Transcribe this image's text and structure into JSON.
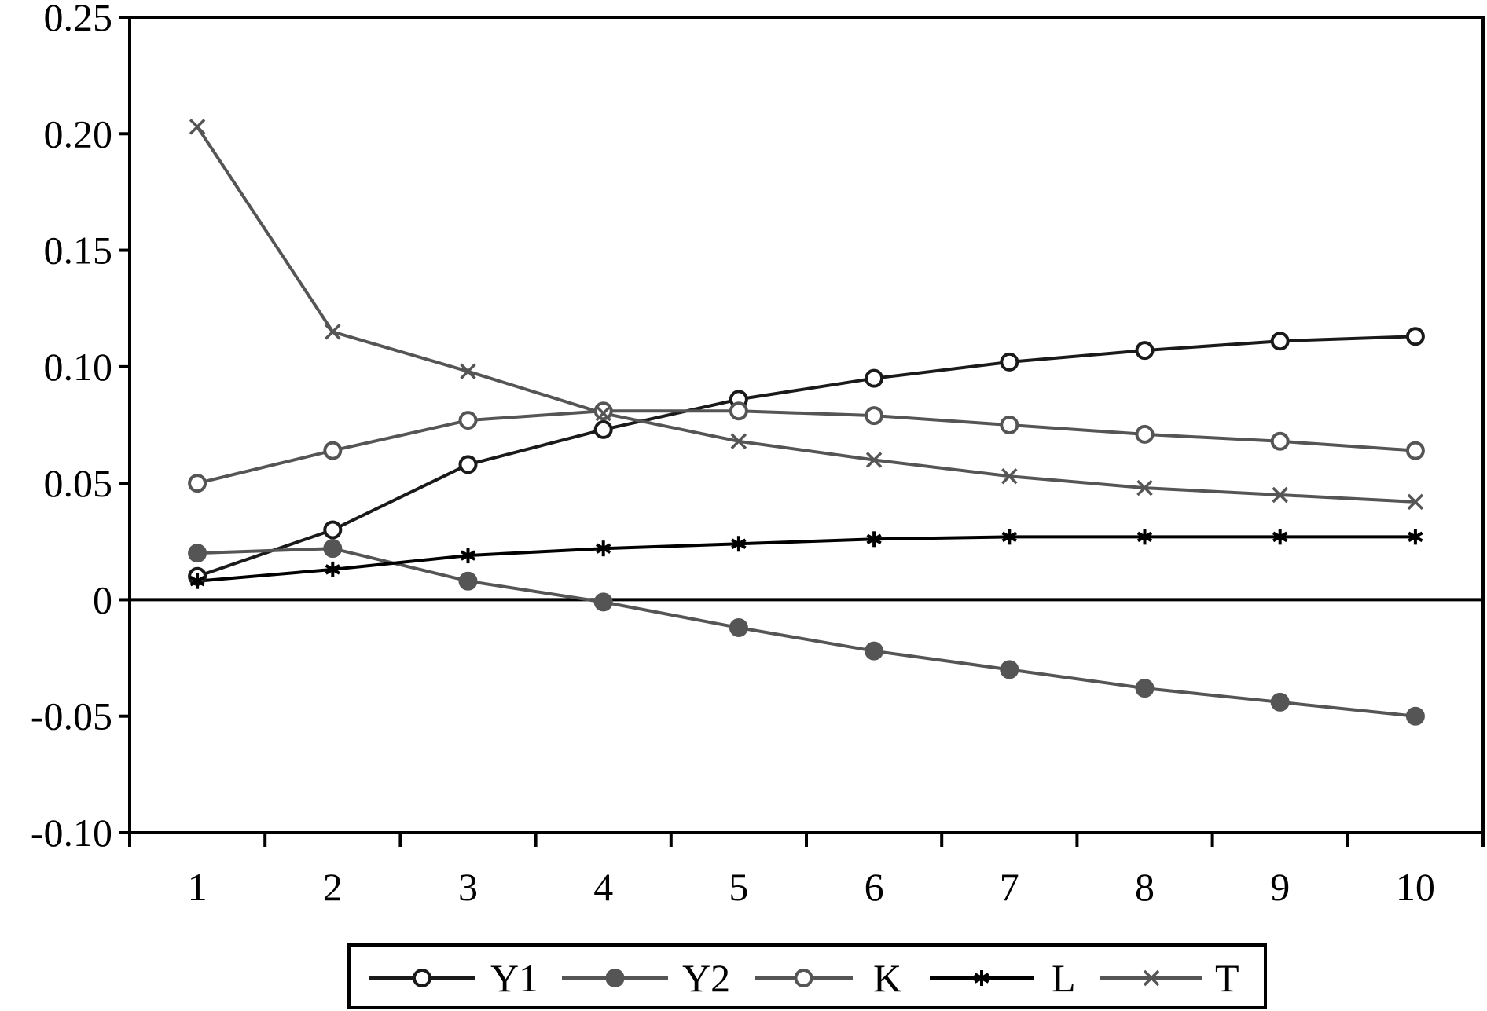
{
  "chart_data": {
    "type": "line",
    "title": "",
    "xlabel": "",
    "ylabel": "",
    "x": [
      1,
      2,
      3,
      4,
      5,
      6,
      7,
      8,
      9,
      10
    ],
    "x_tick_labels": [
      "1",
      "2",
      "3",
      "4",
      "5",
      "6",
      "7",
      "8",
      "9",
      "10"
    ],
    "ylim": [
      -0.1,
      0.25
    ],
    "y_ticks": [
      -0.1,
      -0.05,
      0,
      0.05,
      0.1,
      0.15,
      0.2,
      0.25
    ],
    "y_tick_labels": [
      "-0.10",
      "-0.05",
      "0",
      "0.05",
      "0.10",
      "0.15",
      "0.20",
      "0.25"
    ],
    "grid": false,
    "zero_line": true,
    "legend_position": "bottom",
    "series": [
      {
        "name": "Y1",
        "marker": "open-circle",
        "color": "#1a1a1a",
        "values": [
          0.01,
          0.03,
          0.058,
          0.073,
          0.086,
          0.095,
          0.102,
          0.107,
          0.111,
          0.113
        ]
      },
      {
        "name": "Y2",
        "marker": "filled-circle",
        "color": "#555555",
        "values": [
          0.02,
          0.022,
          0.008,
          -0.001,
          -0.012,
          -0.022,
          -0.03,
          -0.038,
          -0.044,
          -0.05
        ]
      },
      {
        "name": "K",
        "marker": "open-circle",
        "color": "#555555",
        "values": [
          0.05,
          0.064,
          0.077,
          0.081,
          0.081,
          0.079,
          0.075,
          0.071,
          0.068,
          0.064
        ]
      },
      {
        "name": "L",
        "marker": "asterisk",
        "color": "#000000",
        "values": [
          0.008,
          0.013,
          0.019,
          0.022,
          0.024,
          0.026,
          0.027,
          0.027,
          0.027,
          0.027
        ]
      },
      {
        "name": "T",
        "marker": "x",
        "color": "#555555",
        "values": [
          0.203,
          0.115,
          0.098,
          0.08,
          0.068,
          0.06,
          0.053,
          0.048,
          0.045,
          0.042
        ]
      }
    ]
  }
}
